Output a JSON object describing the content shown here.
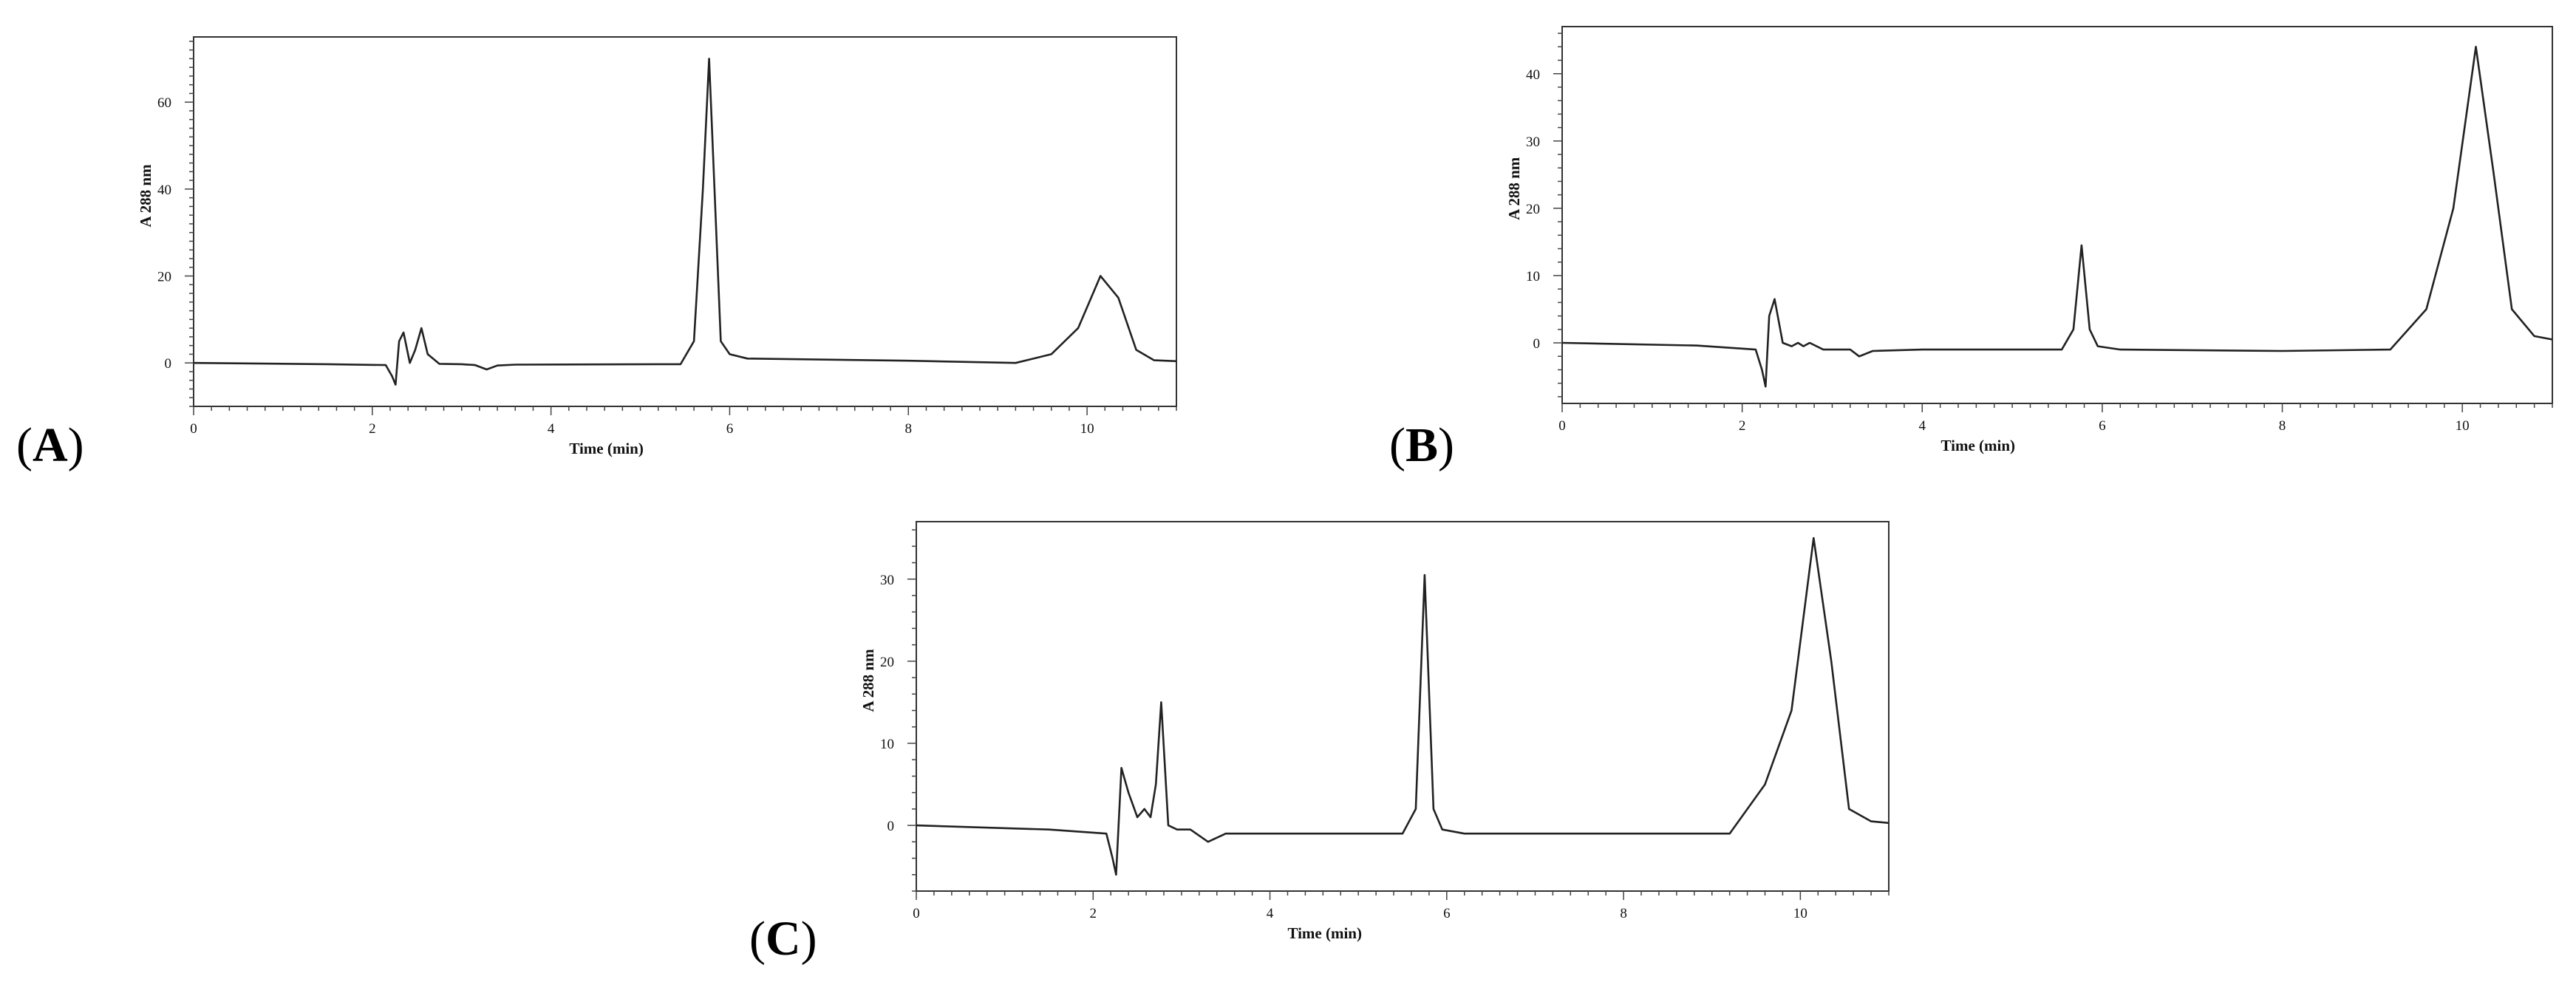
{
  "panels": [
    {
      "id": "a",
      "label_open": "(",
      "label_letter": "A",
      "label_close": ")"
    },
    {
      "id": "b",
      "label_open": "(",
      "label_letter": "B",
      "label_close": ")"
    },
    {
      "id": "c",
      "label_open": "(",
      "label_letter": "C",
      "label_close": ")"
    }
  ],
  "chart_data": [
    {
      "panel": "A",
      "type": "line",
      "xlabel": "Time (min)",
      "ylabel": "A 288 nm",
      "xlim": [
        0,
        11
      ],
      "ylim": [
        -10,
        75
      ],
      "xticks": [
        0,
        2,
        4,
        6,
        8,
        10
      ],
      "yticks": [
        0,
        20,
        40,
        60
      ],
      "line_color": "#222222",
      "series": [
        {
          "x": [
            0,
            1.5,
            2.15,
            2.22,
            2.26,
            2.3,
            2.35,
            2.42,
            2.48,
            2.55,
            2.62,
            2.75,
            3.0,
            3.15,
            3.28,
            3.4,
            3.6,
            5.45,
            5.6,
            5.7,
            5.77,
            5.83,
            5.9,
            6.0,
            6.2,
            8.0,
            9.2,
            9.6,
            9.9,
            10.15,
            10.35,
            10.55,
            10.75,
            11.0
          ],
          "y": [
            0,
            -0.3,
            -0.5,
            -3,
            -5,
            5,
            7,
            0,
            3,
            8,
            2,
            -0.2,
            -0.3,
            -0.5,
            -1.5,
            -0.6,
            -0.4,
            -0.3,
            5,
            40,
            70,
            40,
            5,
            2,
            1,
            0.5,
            0,
            2,
            8,
            20,
            15,
            3,
            0.6,
            0.4
          ]
        }
      ]
    },
    {
      "panel": "B",
      "type": "line",
      "xlabel": "Time (min)",
      "ylabel": "A 288 nm",
      "xlim": [
        0,
        11
      ],
      "ylim": [
        -9,
        47
      ],
      "xticks": [
        0,
        2,
        4,
        6,
        8,
        10
      ],
      "yticks": [
        0,
        10,
        20,
        30,
        40
      ],
      "line_color": "#222222",
      "series": [
        {
          "x": [
            0,
            1.5,
            2.15,
            2.22,
            2.26,
            2.3,
            2.36,
            2.45,
            2.55,
            2.62,
            2.68,
            2.75,
            2.9,
            3.2,
            3.3,
            3.45,
            4.0,
            5.55,
            5.68,
            5.77,
            5.86,
            5.95,
            6.2,
            8.0,
            9.2,
            9.6,
            9.9,
            10.15,
            10.35,
            10.55,
            10.8,
            11.0
          ],
          "y": [
            0,
            -0.4,
            -1,
            -4,
            -6.5,
            4,
            6.5,
            0,
            -0.5,
            0,
            -0.5,
            0,
            -1,
            -1,
            -2,
            -1.2,
            -1,
            -1,
            2,
            14.5,
            2,
            -0.5,
            -1,
            -1.2,
            -1,
            5,
            20,
            44,
            25,
            5,
            1,
            0.5
          ]
        }
      ]
    },
    {
      "panel": "C",
      "type": "line",
      "xlabel": "Time (min)",
      "ylabel": "A 288 nm",
      "xlim": [
        0,
        11
      ],
      "ylim": [
        -8,
        37
      ],
      "xticks": [
        0,
        2,
        4,
        6,
        8,
        10
      ],
      "yticks": [
        0,
        10,
        20,
        30
      ],
      "line_color": "#222222",
      "series": [
        {
          "x": [
            0,
            1.5,
            2.15,
            2.22,
            2.26,
            2.32,
            2.4,
            2.5,
            2.58,
            2.65,
            2.71,
            2.77,
            2.85,
            2.95,
            3.1,
            3.3,
            3.5,
            5.5,
            5.65,
            5.75,
            5.85,
            5.95,
            6.2,
            8.0,
            9.2,
            9.6,
            9.9,
            10.15,
            10.35,
            10.55,
            10.8,
            11.0
          ],
          "y": [
            0,
            -0.5,
            -1,
            -4,
            -6,
            7,
            4,
            1,
            2,
            1,
            5,
            15,
            0,
            -0.5,
            -0.5,
            -2,
            -1,
            -1,
            2,
            30.5,
            2,
            -0.5,
            -1,
            -1,
            -1,
            5,
            14,
            35,
            20,
            2,
            0.5,
            0.3
          ]
        }
      ]
    }
  ]
}
